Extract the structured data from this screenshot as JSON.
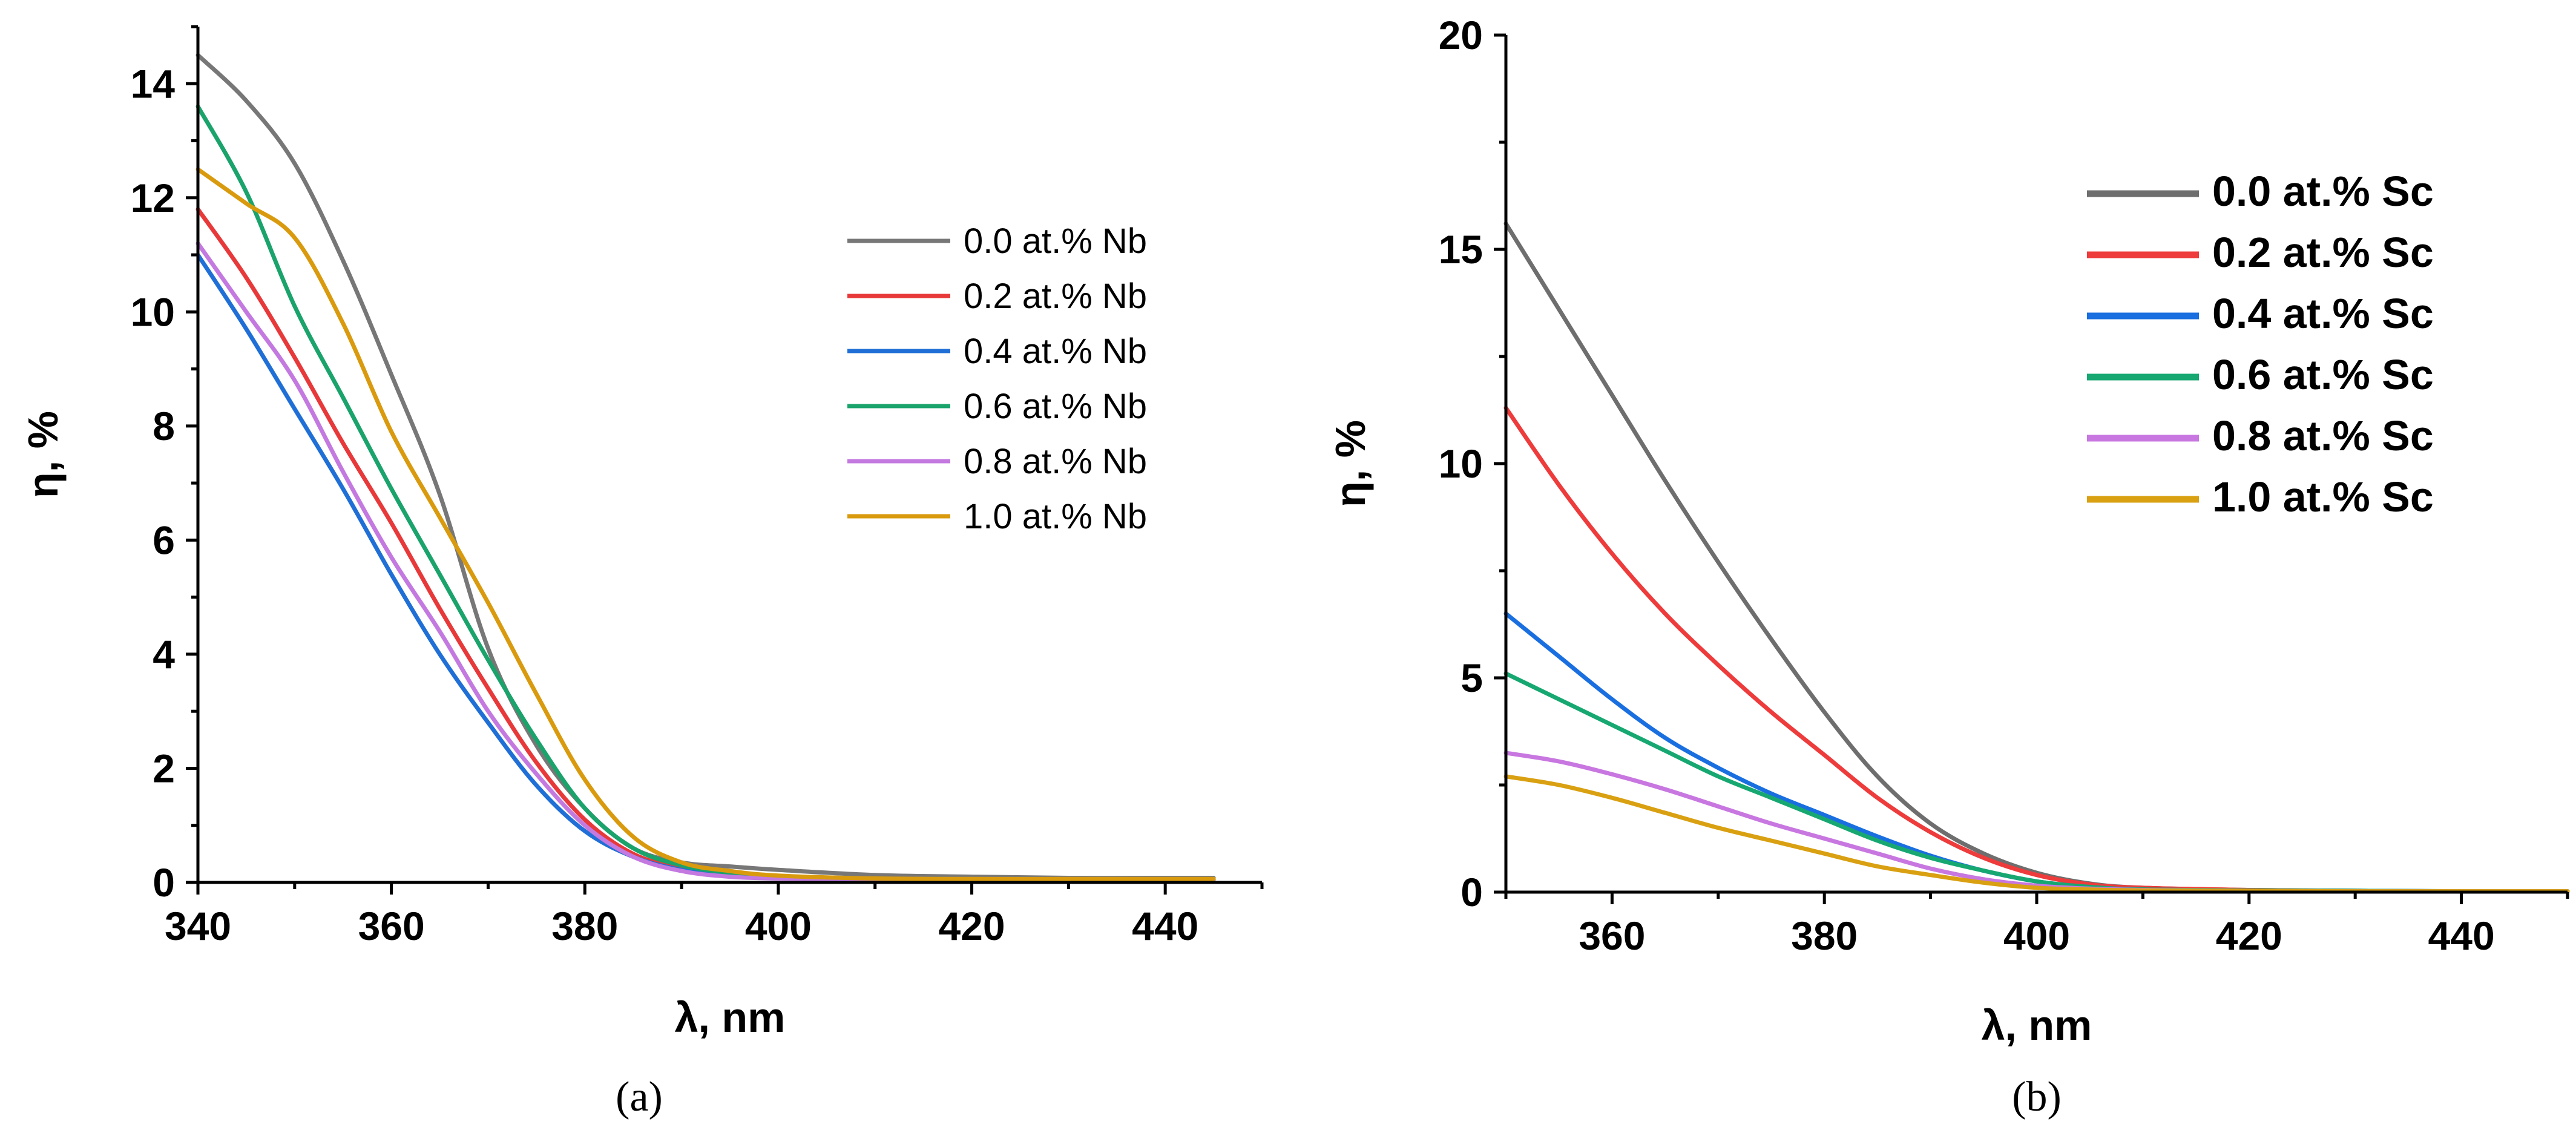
{
  "chart_data": [
    {
      "type": "line",
      "caption": "(a)",
      "xlabel": "λ, nm",
      "ylabel": "η, %",
      "xlim": [
        340,
        450
      ],
      "ylim": [
        0,
        15
      ],
      "xticks": [
        340,
        360,
        380,
        400,
        420,
        440
      ],
      "yticks": [
        0,
        2,
        4,
        6,
        8,
        10,
        12,
        14
      ],
      "legend_position": "right",
      "series": [
        {
          "name": "0.0 at.% Nb",
          "color": "#777777",
          "x": [
            340,
            345,
            350,
            355,
            360,
            365,
            370,
            375,
            380,
            385,
            390,
            395,
            400,
            410,
            420,
            430,
            440,
            445
          ],
          "y": [
            14.5,
            13.7,
            12.6,
            10.9,
            8.9,
            6.8,
            4.1,
            2.4,
            1.3,
            0.6,
            0.35,
            0.28,
            0.22,
            0.13,
            0.1,
            0.08,
            0.08,
            0.08
          ]
        },
        {
          "name": "0.2 at.% Nb",
          "color": "#e8393a",
          "x": [
            340,
            345,
            350,
            355,
            360,
            365,
            370,
            375,
            380,
            385,
            390,
            395,
            400,
            410,
            420,
            430,
            440,
            445
          ],
          "y": [
            11.8,
            10.6,
            9.2,
            7.7,
            6.3,
            4.8,
            3.4,
            2.1,
            1.1,
            0.5,
            0.25,
            0.15,
            0.1,
            0.06,
            0.05,
            0.05,
            0.05,
            0.05
          ]
        },
        {
          "name": "0.4 at.% Nb",
          "color": "#1f6fd6",
          "x": [
            340,
            345,
            350,
            355,
            360,
            365,
            370,
            375,
            380,
            385,
            390,
            395,
            400,
            410,
            420,
            430,
            440,
            445
          ],
          "y": [
            11.0,
            9.7,
            8.3,
            6.9,
            5.4,
            4.0,
            2.8,
            1.7,
            0.9,
            0.45,
            0.22,
            0.13,
            0.08,
            0.05,
            0.05,
            0.05,
            0.05,
            0.05
          ]
        },
        {
          "name": "0.6 at.% Nb",
          "color": "#1aa36b",
          "x": [
            340,
            345,
            350,
            355,
            360,
            365,
            370,
            375,
            380,
            385,
            390,
            395,
            400,
            410,
            420,
            430,
            440,
            445
          ],
          "y": [
            13.6,
            12.1,
            10.1,
            8.5,
            6.9,
            5.4,
            3.9,
            2.5,
            1.3,
            0.6,
            0.3,
            0.17,
            0.1,
            0.06,
            0.05,
            0.05,
            0.05,
            0.05
          ]
        },
        {
          "name": "0.8 at.% Nb",
          "color": "#c379e0",
          "x": [
            340,
            345,
            350,
            355,
            360,
            365,
            370,
            375,
            380,
            385,
            390,
            395,
            400,
            410,
            420,
            430,
            440,
            445
          ],
          "y": [
            11.2,
            10.0,
            8.8,
            7.2,
            5.7,
            4.4,
            3.0,
            1.9,
            1.0,
            0.45,
            0.2,
            0.1,
            0.07,
            0.05,
            0.05,
            0.05,
            0.05,
            0.05
          ]
        },
        {
          "name": "1.0 at.% Nb",
          "color": "#d99a0e",
          "x": [
            340,
            345,
            350,
            355,
            360,
            365,
            370,
            375,
            380,
            385,
            390,
            395,
            400,
            410,
            420,
            430,
            440,
            445
          ],
          "y": [
            12.5,
            11.9,
            11.3,
            9.8,
            7.9,
            6.4,
            4.9,
            3.3,
            1.8,
            0.8,
            0.35,
            0.2,
            0.12,
            0.07,
            0.06,
            0.06,
            0.06,
            0.06
          ]
        }
      ]
    },
    {
      "type": "line",
      "caption": "(b)",
      "xlabel": "λ, nm",
      "ylabel": "η, %",
      "xlim": [
        350,
        450
      ],
      "ylim": [
        0,
        20
      ],
      "xticks": [
        360,
        380,
        400,
        420,
        440
      ],
      "yticks": [
        0,
        5,
        10,
        15,
        20
      ],
      "legend_position": "top-right",
      "series": [
        {
          "name": "0.0 at.% Sc",
          "color": "#6e6e6e",
          "x": [
            350,
            355,
            360,
            365,
            370,
            375,
            380,
            385,
            390,
            395,
            400,
            405,
            410,
            420,
            430,
            440,
            450
          ],
          "y": [
            15.6,
            13.6,
            11.6,
            9.6,
            7.7,
            5.9,
            4.2,
            2.7,
            1.6,
            0.9,
            0.45,
            0.2,
            0.1,
            0.05,
            0.03,
            0.02,
            0.02
          ]
        },
        {
          "name": "0.2 at.% Sc",
          "color": "#ee3b3b",
          "x": [
            350,
            355,
            360,
            365,
            370,
            375,
            380,
            385,
            390,
            395,
            400,
            405,
            410,
            420,
            430,
            440,
            450
          ],
          "y": [
            11.3,
            9.5,
            7.9,
            6.5,
            5.3,
            4.2,
            3.2,
            2.2,
            1.4,
            0.8,
            0.4,
            0.18,
            0.1,
            0.05,
            0.03,
            0.02,
            0.02
          ]
        },
        {
          "name": "0.4 at.% Sc",
          "color": "#1a6fe0",
          "x": [
            350,
            355,
            360,
            365,
            370,
            375,
            380,
            385,
            390,
            395,
            400,
            405,
            410,
            420,
            430,
            440,
            450
          ],
          "y": [
            6.5,
            5.5,
            4.5,
            3.6,
            2.9,
            2.3,
            1.8,
            1.3,
            0.85,
            0.5,
            0.25,
            0.12,
            0.06,
            0.04,
            0.03,
            0.02,
            0.02
          ]
        },
        {
          "name": "0.6 at.% Sc",
          "color": "#17a872",
          "x": [
            350,
            355,
            360,
            365,
            370,
            375,
            380,
            385,
            390,
            395,
            400,
            405,
            410,
            420,
            430,
            440,
            450
          ],
          "y": [
            5.1,
            4.5,
            3.9,
            3.3,
            2.7,
            2.2,
            1.7,
            1.2,
            0.8,
            0.5,
            0.25,
            0.12,
            0.06,
            0.04,
            0.03,
            0.02,
            0.02
          ]
        },
        {
          "name": "0.8 at.% Sc",
          "color": "#c877e0",
          "x": [
            350,
            355,
            360,
            365,
            370,
            375,
            380,
            385,
            390,
            395,
            400,
            405,
            410,
            420,
            430,
            440,
            450
          ],
          "y": [
            3.25,
            3.05,
            2.75,
            2.4,
            2.0,
            1.6,
            1.25,
            0.9,
            0.55,
            0.3,
            0.15,
            0.08,
            0.05,
            0.03,
            0.02,
            0.02,
            0.02
          ]
        },
        {
          "name": "1.0 at.% Sc",
          "color": "#d9a012",
          "x": [
            350,
            355,
            360,
            365,
            370,
            375,
            380,
            385,
            390,
            395,
            400,
            405,
            410,
            420,
            430,
            440,
            450
          ],
          "y": [
            2.7,
            2.5,
            2.2,
            1.85,
            1.5,
            1.2,
            0.9,
            0.6,
            0.4,
            0.22,
            0.1,
            0.06,
            0.04,
            0.03,
            0.02,
            0.02,
            0.02
          ]
        }
      ]
    }
  ]
}
